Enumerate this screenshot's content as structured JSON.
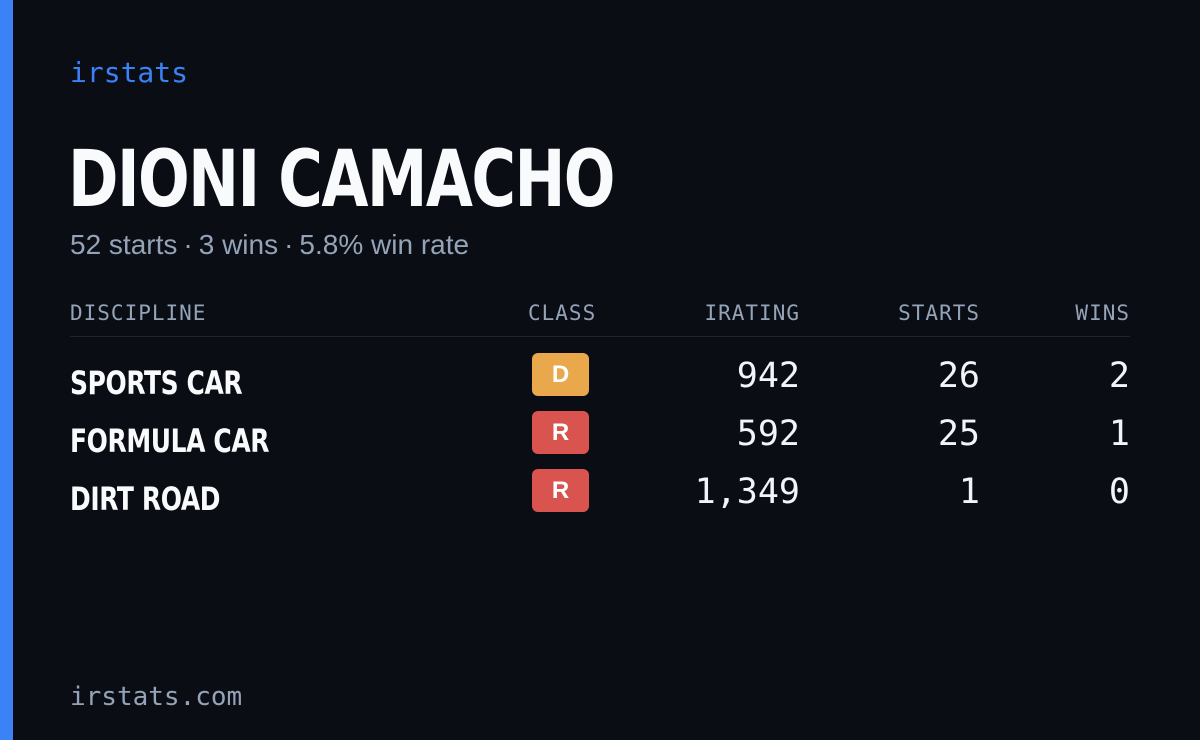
{
  "brand": "irstats",
  "player": {
    "name": "DIONI CAMACHO"
  },
  "summary": {
    "starts": "52 starts",
    "wins": "3 wins",
    "win_rate": "5.8% win rate",
    "separator": "·"
  },
  "table": {
    "headers": {
      "discipline": "DISCIPLINE",
      "class": "CLASS",
      "irating": "IRATING",
      "starts": "STARTS",
      "wins": "WINS"
    },
    "rows": [
      {
        "discipline": "SPORTS CAR",
        "class": "D",
        "class_color": "#e9a84b",
        "irating": "942",
        "starts": "26",
        "wins": "2"
      },
      {
        "discipline": "FORMULA CAR",
        "class": "R",
        "class_color": "#d9534f",
        "irating": "592",
        "starts": "25",
        "wins": "1"
      },
      {
        "discipline": "DIRT ROAD",
        "class": "R",
        "class_color": "#d9534f",
        "irating": "1,349",
        "starts": "1",
        "wins": "0"
      }
    ]
  },
  "footer": {
    "domain": "irstats.com"
  },
  "colors": {
    "accent": "#3b82f6",
    "background": "#0a0d14",
    "muted_text": "#94a3b8"
  }
}
